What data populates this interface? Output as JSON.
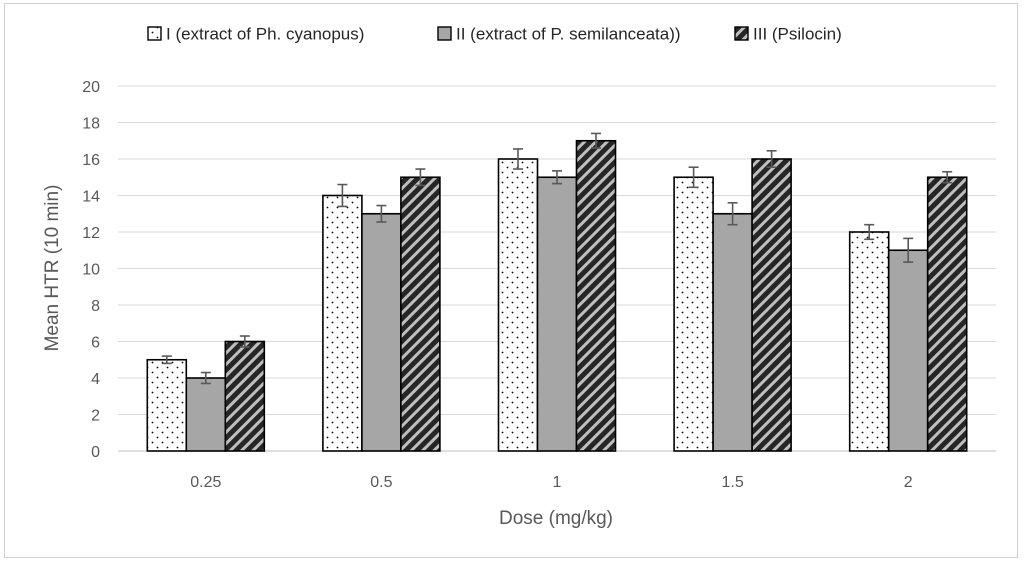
{
  "chart_data": {
    "type": "bar",
    "title": "",
    "xlabel": "Dose (mg/kg)",
    "ylabel": "Mean HTR (10 min)",
    "ylim": [
      0,
      20
    ],
    "ytick_step": 2,
    "grid": true,
    "legend_position": "top",
    "categories": [
      "0.25",
      "0.5",
      "1",
      "1.5",
      "2"
    ],
    "series": [
      {
        "name": "I (extract of Ph. cyanopus)",
        "pattern": "dots",
        "fill": "#ffffff",
        "values": [
          5,
          14,
          16,
          15,
          12
        ],
        "errors": [
          0.2,
          0.6,
          0.55,
          0.55,
          0.4
        ]
      },
      {
        "name": "II (extract of P. semilanceata))",
        "pattern": "solid",
        "fill": "#a6a6a6",
        "values": [
          4,
          13,
          15,
          13,
          11
        ],
        "errors": [
          0.3,
          0.45,
          0.35,
          0.6,
          0.65
        ]
      },
      {
        "name": "III (Psilocin)",
        "pattern": "stripes",
        "fill": "#262626",
        "values": [
          6,
          15,
          17,
          16,
          15
        ],
        "errors": [
          0.3,
          0.45,
          0.4,
          0.45,
          0.3
        ]
      }
    ],
    "colors": {
      "bar_edge": "#000000",
      "grid": "#d9d9d9",
      "axis": "#bfbfbf",
      "error_bar": "#595959",
      "stripe_light": "#bfbfbf"
    }
  }
}
